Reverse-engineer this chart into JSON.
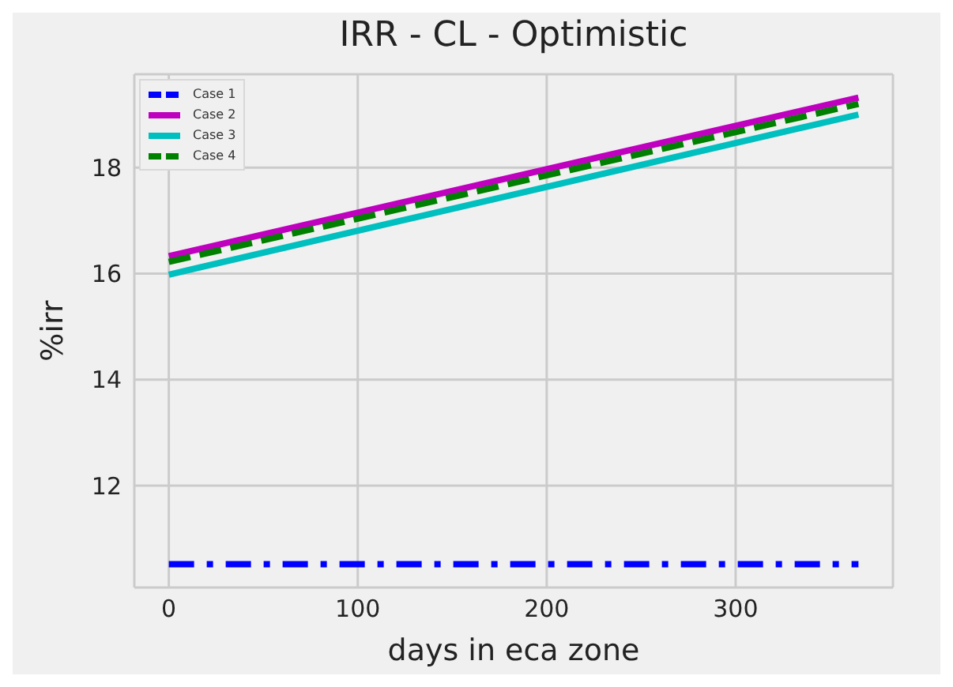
{
  "chart_data": {
    "type": "line",
    "title": "IRR - CL - Optimistic",
    "xlabel": "days in eca zone",
    "ylabel": "%irr",
    "xlim": [
      -18.25,
      383.25
    ],
    "xticks": [
      0,
      100,
      200,
      300
    ],
    "ylim": [
      10.08,
      19.76
    ],
    "yticks": [
      12,
      14,
      16,
      18
    ],
    "grid": true,
    "legend": "top left",
    "marker": "none",
    "x": [
      0,
      365
    ],
    "series": [
      {
        "name": "Case 1",
        "color": "#0000ff",
        "values": [
          10.52,
          10.52
        ],
        "line_style": "dashdot"
      },
      {
        "name": "Case 2",
        "color": "#bf00bf",
        "values": [
          16.33,
          19.32
        ],
        "line_style": "solid"
      },
      {
        "name": "Case 3",
        "color": "#00bfbf",
        "values": [
          15.98,
          19.0
        ],
        "line_style": "solid"
      },
      {
        "name": "Case 4",
        "color": "#008000",
        "values": [
          16.22,
          19.2
        ],
        "line_style": "dashed"
      }
    ]
  }
}
